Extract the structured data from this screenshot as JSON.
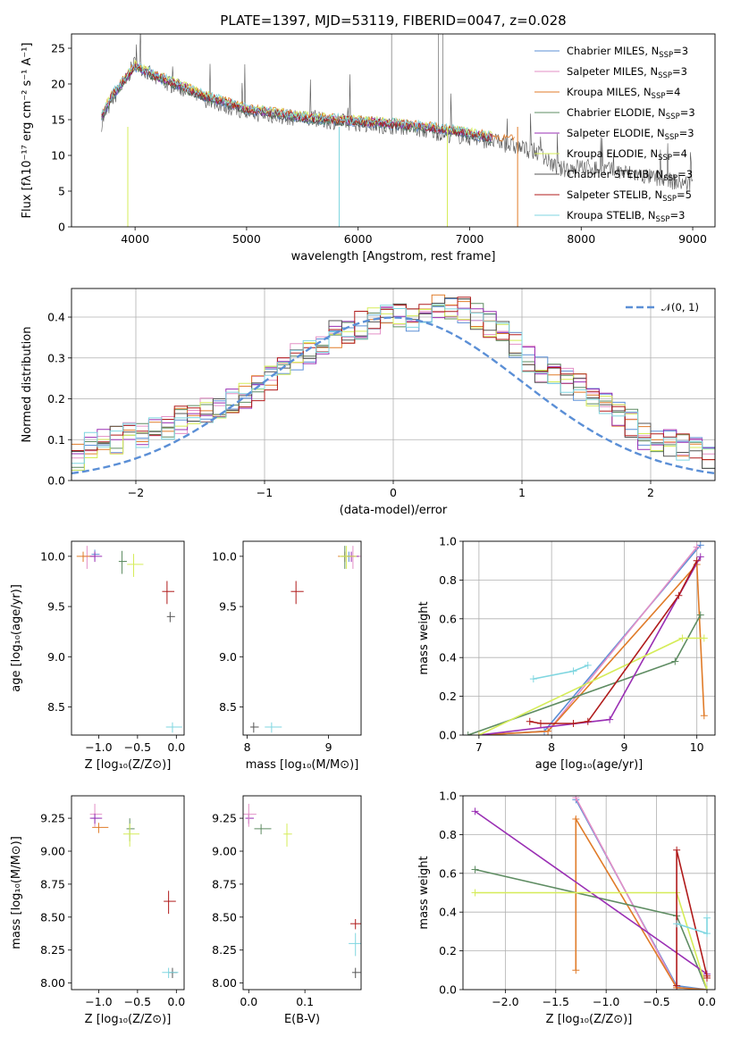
{
  "colors": {
    "chabrier_miles": "#5b8fd6",
    "salpeter_miles": "#e38fc6",
    "kroupa_miles": "#e07b28",
    "chabrier_elodie": "#5e8c62",
    "salpeter_elodie": "#9a2fb4",
    "kroupa_elodie": "#d5ec58",
    "chabrier_stelib": "#555555",
    "salpeter_stelib": "#b01b1b",
    "kroupa_stelib": "#7fd6e0"
  },
  "chart_data": [
    {
      "id": "spectrum",
      "type": "line",
      "title": "PLATE=1397, MJD=53119, FIBERID=0047, z=0.028",
      "xlabel": "wavelength [Angstrom, rest frame]",
      "ylabel": "Flux [fλ10⁻¹⁷ erg cm⁻² s⁻¹ A⁻¹]",
      "xlim": [
        3430,
        9200
      ],
      "ylim": [
        0,
        27
      ],
      "xticks": [
        4000,
        5000,
        6000,
        7000,
        8000,
        9000
      ],
      "yticks": [
        0,
        5,
        10,
        15,
        20,
        25
      ],
      "legend_position": "top-right",
      "observed_envelope": {
        "x": [
          3700,
          3800,
          3900,
          4000,
          4200,
          4400,
          4600,
          4800,
          5000,
          5300,
          5600,
          6000,
          6400,
          6800,
          7200,
          7600,
          7800,
          8000,
          8400,
          8800,
          9000
        ],
        "y": [
          14.5,
          18,
          20,
          23,
          20.5,
          19.5,
          18,
          17,
          16,
          15.5,
          15,
          14.5,
          14,
          13,
          12,
          10.5,
          8,
          8.5,
          7.6,
          6.4,
          6
        ]
      },
      "models": {
        "x": [
          3700,
          3800,
          3900,
          4000,
          4200,
          4400,
          4600,
          4800,
          5000,
          5300,
          5600,
          6000,
          6400,
          6800,
          7200,
          7400
        ],
        "y": [
          15.5,
          18.5,
          20.5,
          22.5,
          21,
          19.8,
          18.5,
          17.5,
          16.5,
          15.8,
          15.2,
          14.8,
          14.3,
          13.6,
          12.5,
          12
        ]
      },
      "series": [
        {
          "key": "chabrier_miles",
          "label": "Chabrier MILES, N",
          "sub": "SSP",
          "suffix": "=3"
        },
        {
          "key": "salpeter_miles",
          "label": "Salpeter MILES, N",
          "sub": "SSP",
          "suffix": "=3"
        },
        {
          "key": "kroupa_miles",
          "label": "Kroupa MILES, N",
          "sub": "SSP",
          "suffix": "=4"
        },
        {
          "key": "chabrier_elodie",
          "label": "Chabrier ELODIE, N",
          "sub": "SSP",
          "suffix": "=3"
        },
        {
          "key": "salpeter_elodie",
          "label": "Salpeter ELODIE, N",
          "sub": "SSP",
          "suffix": "=3"
        },
        {
          "key": "kroupa_elodie",
          "label": "Kroupa ELODIE, N",
          "sub": "SSP",
          "suffix": "=4"
        },
        {
          "key": "chabrier_stelib",
          "label": "Chabrier STELIB, N",
          "sub": "SSP",
          "suffix": "=3"
        },
        {
          "key": "salpeter_stelib",
          "label": "Salpeter STELIB, N",
          "sub": "SSP",
          "suffix": "=5"
        },
        {
          "key": "kroupa_stelib",
          "label": "Kroupa STELIB, N",
          "sub": "SSP",
          "suffix": "=3"
        }
      ]
    },
    {
      "id": "residuals",
      "type": "line",
      "xlabel": "(data-model)/error",
      "ylabel": "Normed distribution",
      "xlim": [
        -2.5,
        2.5
      ],
      "ylim": [
        0,
        0.47
      ],
      "xticks": [
        -2,
        -1,
        0,
        1,
        2
      ],
      "xtick_labels": [
        "−2",
        "−1",
        "0",
        "1",
        "2"
      ],
      "yticks": [
        0,
        0.1,
        0.2,
        0.3,
        0.4
      ],
      "ytick_labels": [
        "0.0",
        "0.1",
        "0.2",
        "0.3",
        "0.4"
      ],
      "grid": true,
      "legend": "𝒩(0, 1)",
      "legend_position": "top-right",
      "bin_width": 0.1,
      "bins_start": -2.5,
      "hist_base": [
        0.06,
        0.09,
        0.1,
        0.1,
        0.11,
        0.11,
        0.12,
        0.13,
        0.15,
        0.16,
        0.17,
        0.18,
        0.2,
        0.21,
        0.23,
        0.25,
        0.27,
        0.3,
        0.31,
        0.33,
        0.36,
        0.37,
        0.38,
        0.39,
        0.4,
        0.41,
        0.4,
        0.41,
        0.42,
        0.43,
        0.42,
        0.4,
        0.38,
        0.36,
        0.33,
        0.3,
        0.27,
        0.25,
        0.24,
        0.23,
        0.21,
        0.19,
        0.16,
        0.14,
        0.11,
        0.1,
        0.09,
        0.08,
        0.07,
        0.06
      ],
      "normal_mean": 0,
      "normal_sigma": 1
    },
    {
      "id": "age_vs_Z",
      "type": "scatter",
      "xlabel": "Z [log₁₀(Z/Z⊙)]",
      "ylabel": "age  [log₁₀(age/yr)]",
      "xlim": [
        -1.35,
        0.1
      ],
      "ylim": [
        8.22,
        10.15
      ],
      "xticks": [
        -1.0,
        -0.5,
        0.0
      ],
      "xtick_labels": [
        "−1.0",
        "−0.5",
        "0.0"
      ],
      "yticks": [
        8.5,
        9.0,
        9.5,
        10.0
      ],
      "ytick_labels": [
        "8.5",
        "9.0",
        "9.5",
        "10.0"
      ],
      "points": [
        {
          "key": "chabrier_miles",
          "x": -1.05,
          "y": 10.02
        },
        {
          "key": "salpeter_miles",
          "x": -1.15,
          "y": 10.0
        },
        {
          "key": "kroupa_miles",
          "x": -1.2,
          "y": 10.0
        },
        {
          "key": "chabrier_elodie",
          "x": -0.7,
          "y": 9.95
        },
        {
          "key": "salpeter_elodie",
          "x": -1.05,
          "y": 10.0
        },
        {
          "key": "kroupa_elodie",
          "x": -0.55,
          "y": 9.92
        },
        {
          "key": "chabrier_stelib",
          "x": -0.08,
          "y": 9.4
        },
        {
          "key": "salpeter_stelib",
          "x": -0.12,
          "y": 9.65
        },
        {
          "key": "kroupa_stelib",
          "x": -0.05,
          "y": 8.3
        }
      ]
    },
    {
      "id": "age_vs_mass",
      "type": "scatter",
      "xlabel": "mass [log₁₀(M/M⊙)]",
      "xlim": [
        7.95,
        9.4
      ],
      "ylim": [
        8.22,
        10.15
      ],
      "xticks": [
        8,
        9
      ],
      "xtick_labels": [
        "8",
        "9"
      ],
      "yticks": [
        8.5,
        9.0,
        9.5,
        10.0
      ],
      "ytick_labels": [
        "8.5",
        "9.0",
        "9.5",
        "10.0"
      ],
      "points": [
        {
          "key": "chabrier_miles",
          "x": 9.25,
          "y": 10.0
        },
        {
          "key": "salpeter_miles",
          "x": 9.3,
          "y": 10.0
        },
        {
          "key": "kroupa_miles",
          "x": 9.2,
          "y": 10.0
        },
        {
          "key": "chabrier_elodie",
          "x": 9.2,
          "y": 10.0
        },
        {
          "key": "salpeter_elodie",
          "x": 9.28,
          "y": 10.0
        },
        {
          "key": "kroupa_elodie",
          "x": 9.22,
          "y": 10.0
        },
        {
          "key": "chabrier_stelib",
          "x": 8.08,
          "y": 8.3
        },
        {
          "key": "salpeter_stelib",
          "x": 8.6,
          "y": 9.65
        },
        {
          "key": "kroupa_stelib",
          "x": 8.3,
          "y": 8.3
        }
      ]
    },
    {
      "id": "massweight_vs_age",
      "type": "line",
      "xlabel": "age  [log₁₀(age/yr)]",
      "ylabel": "mass weight",
      "xlim": [
        6.78,
        10.25
      ],
      "ylim": [
        0,
        1.0
      ],
      "xticks": [
        7,
        8,
        9,
        10
      ],
      "xtick_labels": [
        "7",
        "8",
        "9",
        "10"
      ],
      "yticks": [
        0,
        0.2,
        0.4,
        0.6,
        0.8,
        1.0
      ],
      "ytick_labels": [
        "0.0",
        "0.2",
        "0.4",
        "0.6",
        "0.8",
        "1.0"
      ],
      "grid": true,
      "series": [
        {
          "key": "chabrier_miles",
          "x": [
            7.0,
            7.9,
            10.05
          ],
          "y": [
            0.0,
            0.02,
            0.98
          ]
        },
        {
          "key": "salpeter_miles",
          "x": [
            7.0,
            7.95,
            10.0
          ],
          "y": [
            0.0,
            0.02,
            0.97
          ]
        },
        {
          "key": "kroupa_miles",
          "x": [
            7.0,
            7.95,
            10.0,
            10.1
          ],
          "y": [
            0.0,
            0.02,
            0.88,
            0.1
          ]
        },
        {
          "key": "chabrier_elodie",
          "x": [
            6.85,
            9.7,
            10.05
          ],
          "y": [
            0.0,
            0.38,
            0.62
          ]
        },
        {
          "key": "salpeter_elodie",
          "x": [
            7.0,
            8.8,
            10.05
          ],
          "y": [
            0.0,
            0.08,
            0.92
          ]
        },
        {
          "key": "kroupa_elodie",
          "x": [
            7.0,
            9.8,
            10.1
          ],
          "y": [
            0.0,
            0.5,
            0.5
          ]
        },
        {
          "key": "salpeter_stelib",
          "x": [
            7.7,
            7.85,
            8.3,
            8.5,
            9.75,
            10.0
          ],
          "y": [
            0.07,
            0.06,
            0.06,
            0.07,
            0.72,
            0.9
          ]
        },
        {
          "key": "kroupa_stelib",
          "x": [
            7.75,
            8.3,
            8.5
          ],
          "y": [
            0.29,
            0.33,
            0.36
          ]
        }
      ]
    },
    {
      "id": "mass_vs_Z",
      "type": "scatter",
      "xlabel": "Z [log₁₀(Z/Z⊙)]",
      "ylabel": "mass [log₁₀(M/M⊙)]",
      "xlim": [
        -1.35,
        0.1
      ],
      "ylim": [
        7.95,
        9.42
      ],
      "xticks": [
        -1.0,
        -0.5,
        0.0
      ],
      "xtick_labels": [
        "−1.0",
        "−0.5",
        "0.0"
      ],
      "yticks": [
        8.0,
        8.25,
        8.5,
        8.75,
        9.0,
        9.25
      ],
      "ytick_labels": [
        "8.00",
        "8.25",
        "8.50",
        "8.75",
        "9.00",
        "9.25"
      ],
      "points": [
        {
          "key": "chabrier_miles",
          "x": -1.05,
          "y": 9.25
        },
        {
          "key": "salpeter_miles",
          "x": -1.05,
          "y": 9.28
        },
        {
          "key": "kroupa_miles",
          "x": -1.0,
          "y": 9.18
        },
        {
          "key": "chabrier_elodie",
          "x": -0.6,
          "y": 9.17
        },
        {
          "key": "salpeter_elodie",
          "x": -1.05,
          "y": 9.25
        },
        {
          "key": "kroupa_elodie",
          "x": -0.6,
          "y": 9.13
        },
        {
          "key": "chabrier_stelib",
          "x": -0.05,
          "y": 8.08
        },
        {
          "key": "salpeter_stelib",
          "x": -0.1,
          "y": 8.62
        },
        {
          "key": "kroupa_stelib",
          "x": -0.1,
          "y": 8.08
        }
      ]
    },
    {
      "id": "mass_vs_ebv",
      "type": "scatter",
      "xlabel": "E(B-V)",
      "xlim": [
        -0.01,
        0.2
      ],
      "ylim": [
        7.95,
        9.42
      ],
      "xticks": [
        0.0,
        0.1
      ],
      "xtick_labels": [
        "0.0",
        "0.1"
      ],
      "yticks": [
        8.0,
        8.25,
        8.5,
        8.75,
        9.0,
        9.25
      ],
      "ytick_labels": [
        "8.00",
        "8.25",
        "8.50",
        "8.75",
        "9.00",
        "9.25"
      ],
      "points": [
        {
          "key": "salpeter_elodie",
          "x": 0.0,
          "y": 9.25
        },
        {
          "key": "salpeter_miles",
          "x": 0.0,
          "y": 9.28
        },
        {
          "key": "chabrier_elodie",
          "x": 0.022,
          "y": 9.17
        },
        {
          "key": "kroupa_elodie",
          "x": 0.068,
          "y": 9.13
        },
        {
          "key": "salpeter_stelib",
          "x": 0.19,
          "y": 8.45
        },
        {
          "key": "kroupa_stelib",
          "x": 0.19,
          "y": 8.3
        },
        {
          "key": "chabrier_stelib",
          "x": 0.19,
          "y": 8.08
        }
      ]
    },
    {
      "id": "massweight_vs_Z",
      "type": "line",
      "xlabel": "Z [log₁₀(Z/Z⊙)]",
      "ylabel": "mass weight",
      "xlim": [
        -2.42,
        0.08
      ],
      "ylim": [
        0,
        1.0
      ],
      "xticks": [
        -2.0,
        -1.5,
        -1.0,
        -0.5,
        0.0
      ],
      "xtick_labels": [
        "−2.0",
        "−1.5",
        "−1.0",
        "−0.5",
        "0.0"
      ],
      "yticks": [
        0,
        0.2,
        0.4,
        0.6,
        0.8,
        1.0
      ],
      "ytick_labels": [
        "0.0",
        "0.2",
        "0.4",
        "0.6",
        "0.8",
        "1.0"
      ],
      "grid": true,
      "series": [
        {
          "key": "chabrier_miles",
          "x": [
            -1.3,
            -0.3,
            0.0
          ],
          "y": [
            0.98,
            0.02,
            0.0
          ]
        },
        {
          "key": "salpeter_miles",
          "x": [
            -1.3,
            -0.3,
            0.0
          ],
          "y": [
            0.99,
            0.01,
            0.0
          ]
        },
        {
          "key": "kroupa_miles",
          "x": [
            -1.3,
            -1.3,
            -0.3,
            0.0
          ],
          "y": [
            0.1,
            0.88,
            0.01,
            0.0
          ]
        },
        {
          "key": "chabrier_elodie",
          "x": [
            -2.3,
            -0.3,
            0.0
          ],
          "y": [
            0.62,
            0.38,
            0.0
          ]
        },
        {
          "key": "salpeter_elodie",
          "x": [
            -2.3,
            0.0
          ],
          "y": [
            0.92,
            0.08
          ]
        },
        {
          "key": "kroupa_elodie",
          "x": [
            -2.3,
            -0.3,
            0.0
          ],
          "y": [
            0.5,
            0.5,
            0.0
          ]
        },
        {
          "key": "salpeter_stelib",
          "x": [
            -0.3,
            -0.3,
            0.0,
            0.0
          ],
          "y": [
            0.02,
            0.72,
            0.07,
            0.06
          ]
        },
        {
          "key": "kroupa_stelib",
          "x": [
            -0.3,
            0.0,
            0.0
          ],
          "y": [
            0.34,
            0.29,
            0.37
          ]
        }
      ]
    }
  ]
}
